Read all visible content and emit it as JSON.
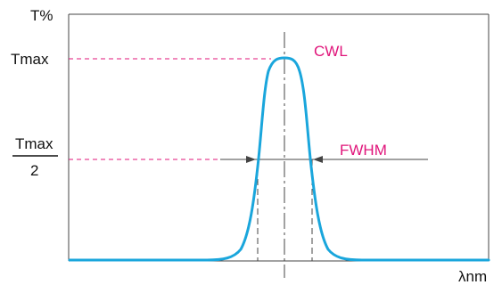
{
  "diagram": {
    "labels": {
      "y_axis": "T%",
      "x_axis": "λnm",
      "tmax": "Tmax",
      "half_numerator": "Tmax",
      "half_denominator": "2",
      "cwl": "CWL",
      "fwhm": "FWHM"
    },
    "colors": {
      "curve": "#1aa6dc",
      "guide": "#e0147a",
      "annotation_text": "#e0147a",
      "axis": "#444444",
      "text": "#111111"
    }
  }
}
